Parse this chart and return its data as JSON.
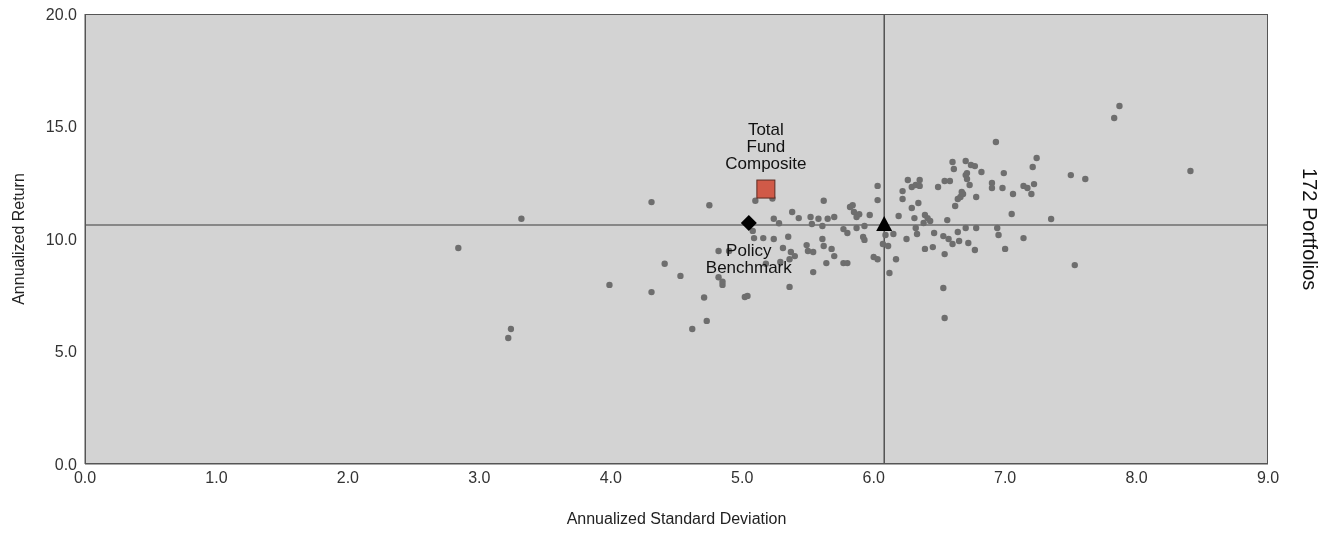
{
  "chart_data": {
    "type": "scatter",
    "xlabel": "Annualized Standard Deviation",
    "ylabel": "Annualized Return",
    "annotations": [
      "172 Portfolios"
    ],
    "xlim": [
      0,
      9
    ],
    "ylim": [
      0,
      20
    ],
    "xticks": [
      {
        "value": 0,
        "label": "0.0"
      },
      {
        "value": 1,
        "label": "1.0"
      },
      {
        "value": 2,
        "label": "2.0"
      },
      {
        "value": 3,
        "label": "3.0"
      },
      {
        "value": 4,
        "label": "4.0"
      },
      {
        "value": 5,
        "label": "5.0"
      },
      {
        "value": 6,
        "label": "6.0"
      },
      {
        "value": 7,
        "label": "7.0"
      },
      {
        "value": 8,
        "label": "8.0"
      },
      {
        "value": 9,
        "label": "9.0"
      }
    ],
    "yticks": [
      {
        "value": 0,
        "label": "0.0"
      },
      {
        "value": 5,
        "label": "5.0"
      },
      {
        "value": 10,
        "label": "10.0"
      },
      {
        "value": 15,
        "label": "15.0"
      },
      {
        "value": 20,
        "label": "20.0"
      }
    ],
    "grid": false,
    "legend": false,
    "ref_lines": [
      {
        "axis": "x",
        "value": 6.08,
        "color": "#333333"
      },
      {
        "axis": "y",
        "value": 10.62,
        "color": "#6e6e6e"
      }
    ],
    "series": [
      {
        "color": "#6e6e6e",
        "marker": "circle",
        "x": [
          2.84,
          3.32,
          3.24,
          3.22,
          3.99,
          4.31,
          4.31,
          4.41,
          4.53,
          4.75,
          4.82,
          4.85,
          4.85,
          4.71,
          4.62,
          4.73,
          5.02,
          5.04,
          5.1,
          5.08,
          5.09,
          4.9,
          4.82,
          5.23,
          5.38,
          5.43,
          5.24,
          5.28,
          5.52,
          5.58,
          5.65,
          5.7,
          5.53,
          5.61,
          5.62,
          5.16,
          5.35,
          5.24,
          5.61,
          5.31,
          5.37,
          5.4,
          5.49,
          5.5,
          5.54,
          5.62,
          5.68,
          5.7,
          5.18,
          5.29,
          5.36,
          5.64,
          5.77,
          5.8,
          5.54,
          5.36,
          5.82,
          5.84,
          5.85,
          5.87,
          5.89,
          5.97,
          6.03,
          6.03,
          5.77,
          5.8,
          5.87,
          5.93,
          5.92,
          5.93,
          6.0,
          6.03,
          6.09,
          6.07,
          6.11,
          6.15,
          6.17,
          6.12,
          6.19,
          6.22,
          6.22,
          6.26,
          6.29,
          6.32,
          6.35,
          6.35,
          6.29,
          6.34,
          6.31,
          6.39,
          6.41,
          6.38,
          6.43,
          6.32,
          6.33,
          6.25,
          6.46,
          6.53,
          6.57,
          6.6,
          6.39,
          6.45,
          6.54,
          6.65,
          6.72,
          6.77,
          6.53,
          6.54,
          6.56,
          6.64,
          6.7,
          6.78,
          6.49,
          6.54,
          6.58,
          6.62,
          6.64,
          6.66,
          6.67,
          6.68,
          6.78,
          6.73,
          6.71,
          6.7,
          6.71,
          6.6,
          6.61,
          6.7,
          6.74,
          6.77,
          6.82,
          6.9,
          6.9,
          6.93,
          6.94,
          6.99,
          6.98,
          7.06,
          7.14,
          7.17,
          7.22,
          7.2,
          7.21,
          7.24,
          7.05,
          7.35,
          6.95,
          7.14,
          7.0,
          7.5,
          7.61,
          7.53,
          7.83,
          7.87,
          8.41
        ],
        "values": [
          9.6,
          10.9,
          6.0,
          5.6,
          7.96,
          11.64,
          7.64,
          8.9,
          8.36,
          11.5,
          8.3,
          7.96,
          8.1,
          7.4,
          6.0,
          6.36,
          7.42,
          7.47,
          11.7,
          10.36,
          10.04,
          9.47,
          9.47,
          11.8,
          11.2,
          10.93,
          10.9,
          10.7,
          10.98,
          10.9,
          10.9,
          10.98,
          10.67,
          10.58,
          11.7,
          10.04,
          10.1,
          10.0,
          10.0,
          9.6,
          9.42,
          9.24,
          9.73,
          9.47,
          9.42,
          9.69,
          9.56,
          9.24,
          8.9,
          8.98,
          9.1,
          8.93,
          8.93,
          8.93,
          8.53,
          7.87,
          11.42,
          11.5,
          11.2,
          10.98,
          11.1,
          11.07,
          11.73,
          12.36,
          10.44,
          10.27,
          10.49,
          10.58,
          10.09,
          9.96,
          9.2,
          9.1,
          10.18,
          9.78,
          9.69,
          10.22,
          9.1,
          8.49,
          11.02,
          11.78,
          12.13,
          12.62,
          12.31,
          12.4,
          12.62,
          12.36,
          11.38,
          11.6,
          10.93,
          11.07,
          10.93,
          10.71,
          10.8,
          10.49,
          10.22,
          10.0,
          10.27,
          10.13,
          10.0,
          9.78,
          9.56,
          9.64,
          9.33,
          9.91,
          9.82,
          9.51,
          7.82,
          6.49,
          10.84,
          10.31,
          10.49,
          10.49,
          12.31,
          12.58,
          12.58,
          11.47,
          11.78,
          11.87,
          12.09,
          12.0,
          11.87,
          12.4,
          12.67,
          12.84,
          12.93,
          13.42,
          13.11,
          13.47,
          13.29,
          13.24,
          12.98,
          12.49,
          12.27,
          14.31,
          10.49,
          12.93,
          12.27,
          12.0,
          12.36,
          12.27,
          12.44,
          12.0,
          13.2,
          13.6,
          11.11,
          10.89,
          10.18,
          10.04,
          9.56,
          12.84,
          12.67,
          8.84,
          15.38,
          15.91,
          13.02
        ]
      },
      {
        "name": "Total Fund Composite",
        "color": "#d05a48",
        "marker": "square",
        "x": [
          5.18
        ],
        "values": [
          12.22
        ]
      },
      {
        "name": "Policy Benchmark",
        "color": "#000000",
        "marker": "diamond",
        "x": [
          5.05
        ],
        "values": [
          10.71
        ]
      },
      {
        "color": "#000000",
        "marker": "triangle",
        "x": [
          6.08
        ],
        "values": [
          10.62
        ]
      }
    ]
  }
}
